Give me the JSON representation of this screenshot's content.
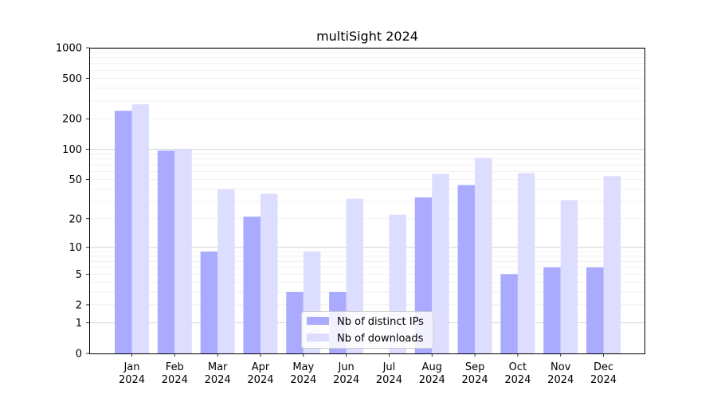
{
  "chart_data": {
    "type": "bar",
    "title": "multiSight 2024",
    "xlabel": "",
    "ylabel": "",
    "y_scale": "symlog",
    "ylim": [
      0,
      1000
    ],
    "grid": true,
    "legend_position": "bottom-center",
    "categories": [
      [
        "Jan",
        "2024"
      ],
      [
        "Feb",
        "2024"
      ],
      [
        "Mar",
        "2024"
      ],
      [
        "Apr",
        "2024"
      ],
      [
        "May",
        "2024"
      ],
      [
        "Jun",
        "2024"
      ],
      [
        "Jul",
        "2024"
      ],
      [
        "Aug",
        "2024"
      ],
      [
        "Sep",
        "2024"
      ],
      [
        "Oct",
        "2024"
      ],
      [
        "Nov",
        "2024"
      ],
      [
        "Dec",
        "2024"
      ]
    ],
    "y_ticks": [
      0,
      1,
      2,
      5,
      10,
      20,
      50,
      100,
      200,
      500,
      1000
    ],
    "y_tick_labels": [
      "0",
      "1",
      "2",
      "5",
      "10",
      "20",
      "50",
      "100",
      "200",
      "500",
      "1000"
    ],
    "series": [
      {
        "name": "Nb of distinct IPs",
        "color": "#aaaaff",
        "values": [
          240,
          97,
          9,
          21,
          3,
          3,
          0,
          33,
          44,
          5,
          6,
          6
        ]
      },
      {
        "name": "Nb of downloads",
        "color": "#ddddff",
        "values": [
          278,
          100,
          40,
          36,
          9,
          32,
          22,
          57,
          82,
          58,
          31,
          54
        ]
      }
    ]
  }
}
